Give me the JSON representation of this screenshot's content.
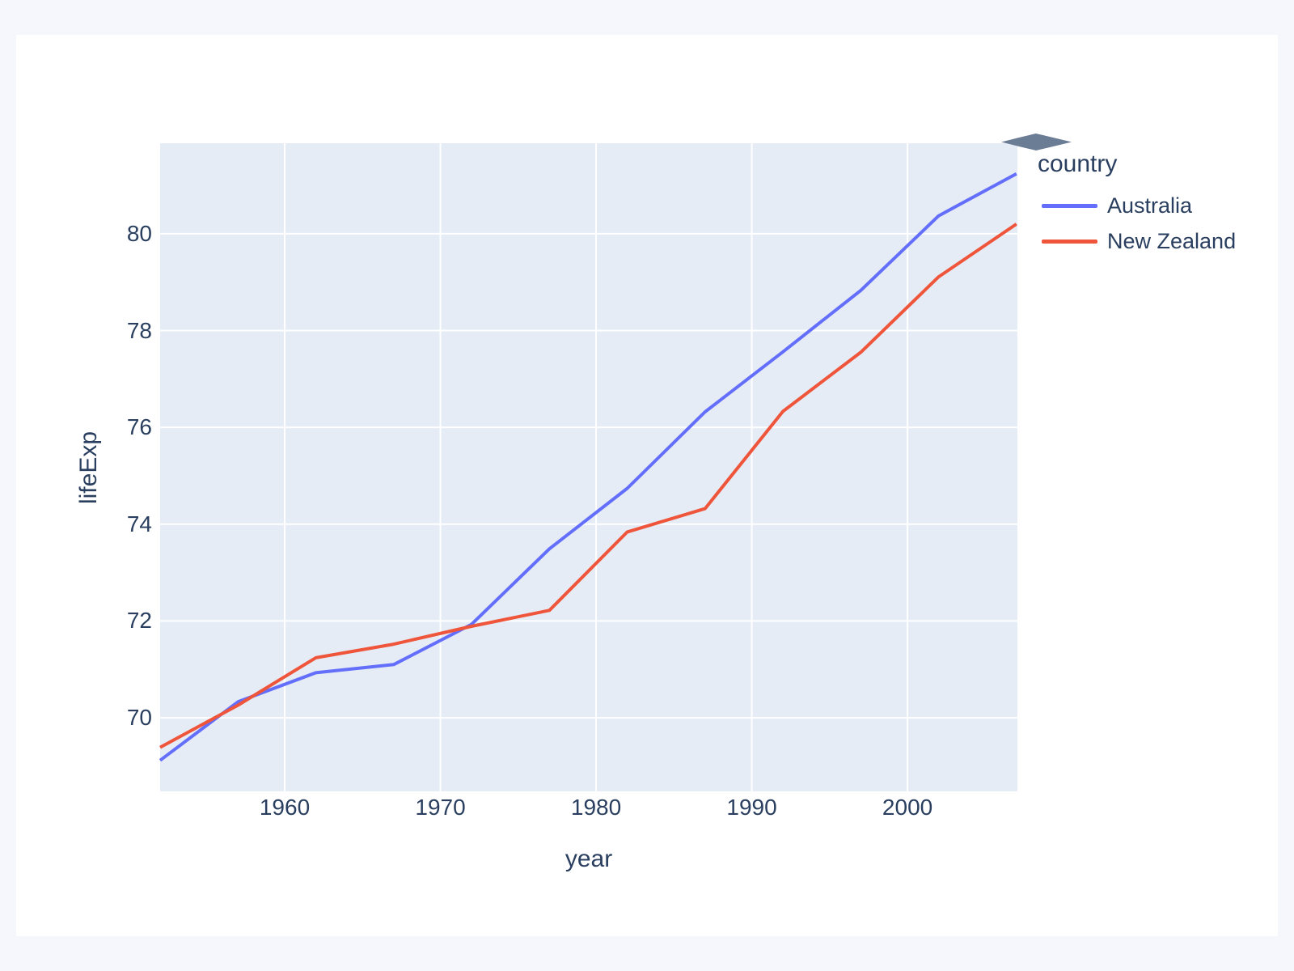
{
  "page": {
    "background_color": "#f6f7fd",
    "card_background_color": "#ffffff"
  },
  "decoration": {
    "diamond_color": "#6b7c95"
  },
  "chart_data": {
    "type": "line",
    "title": "",
    "xlabel": "year",
    "ylabel": "lifeExp",
    "legend_title": "country",
    "legend_position": "top-right-outside",
    "grid": true,
    "plot_bg_color": "#e5ecf6",
    "grid_color": "#ffffff",
    "text_color": "#2a3f5f",
    "x": [
      1952,
      1957,
      1962,
      1967,
      1972,
      1977,
      1982,
      1987,
      1992,
      1997,
      2002,
      2007
    ],
    "series": [
      {
        "name": "Australia",
        "color": "#636efa",
        "values": [
          69.12,
          70.33,
          70.93,
          71.1,
          71.93,
          73.49,
          74.74,
          76.32,
          77.56,
          78.83,
          80.37,
          81.24
        ]
      },
      {
        "name": "New Zealand",
        "color": "#ef553b",
        "values": [
          69.39,
          70.26,
          71.24,
          71.52,
          71.89,
          72.22,
          73.84,
          74.32,
          76.33,
          77.55,
          79.11,
          80.2
        ]
      }
    ],
    "xlim": [
      1952,
      2007.06
    ],
    "ylim": [
      68.48,
      81.87
    ],
    "x_ticks": [
      1960,
      1970,
      1980,
      1990,
      2000
    ],
    "y_ticks": [
      70,
      72,
      74,
      76,
      78,
      80
    ]
  }
}
